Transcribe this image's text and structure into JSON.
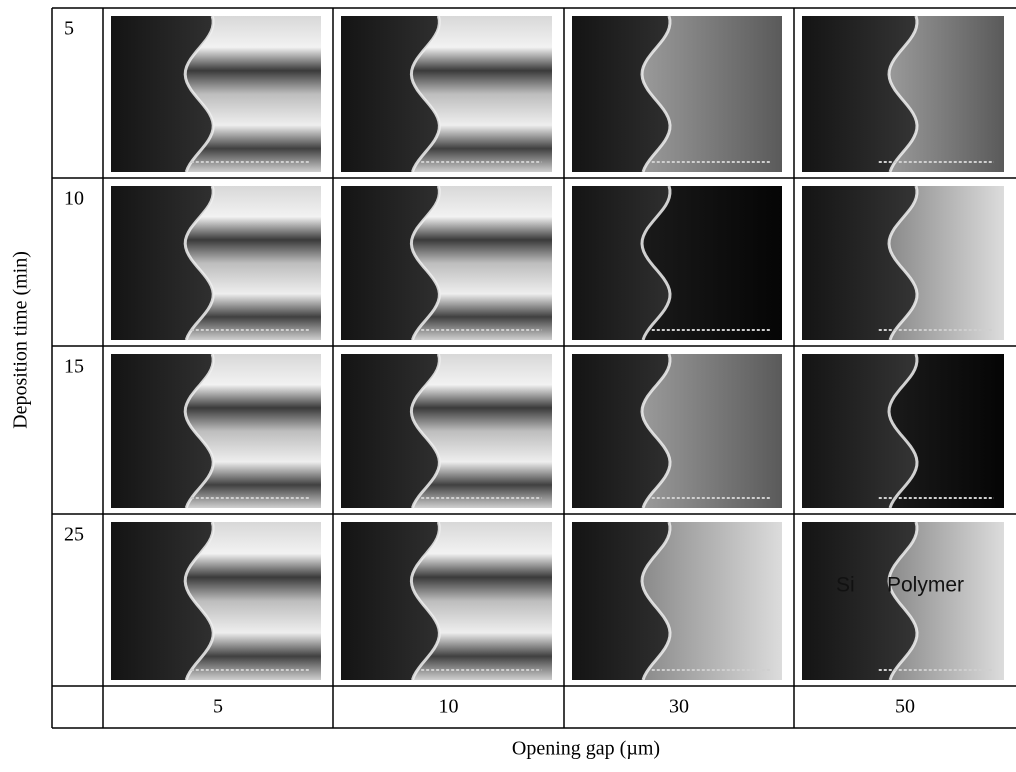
{
  "figure": {
    "y_label": "Deposition time (min)",
    "x_label": "Opening gap (µm)",
    "rows": [
      "5",
      "10",
      "15",
      "25"
    ],
    "columns": [
      "5",
      "10",
      "30",
      "50"
    ],
    "annotations": [
      "Si",
      "Polymer"
    ]
  }
}
